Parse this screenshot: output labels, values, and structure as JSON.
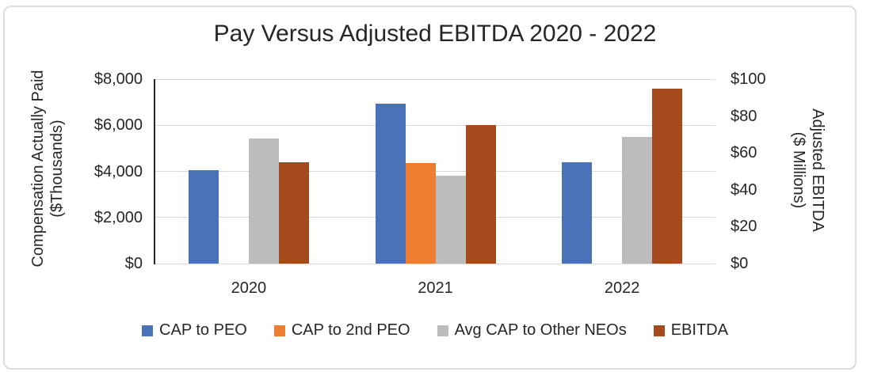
{
  "title": "Pay Versus Adjusted EBITDA 2020 - 2022",
  "colors": {
    "cap_to_peo": "#4A72B8",
    "cap_to_2nd_peo": "#ED7D31",
    "avg_cap_other_neos": "#BCBCBC",
    "ebitda": "#A54A1C",
    "gridline": "#D9D9D9",
    "axis_line": "#262626",
    "text": "#262626",
    "border": "#DCDCDC"
  },
  "chart_data": {
    "type": "bar",
    "title": "Pay Versus Adjusted EBITDA 2020 - 2022",
    "categories": [
      "2020",
      "2021",
      "2022"
    ],
    "series": [
      {
        "name": "CAP to PEO",
        "axis": "left",
        "color": "#4A72B8",
        "values": [
          4050,
          6950,
          4400
        ]
      },
      {
        "name": "CAP to 2nd PEO",
        "axis": "left",
        "color": "#ED7D31",
        "values": [
          null,
          4350,
          null
        ]
      },
      {
        "name": "Avg CAP to Other NEOs",
        "axis": "left",
        "color": "#BCBCBC",
        "values": [
          5430,
          3800,
          5500
        ]
      },
      {
        "name": "EBITDA",
        "axis": "right",
        "color": "#A54A1C",
        "values": [
          55,
          75,
          95
        ]
      }
    ],
    "left_axis": {
      "label_lines": [
        "Compensation Actually Paid",
        "($Thousands)"
      ],
      "ticks": [
        {
          "label": "$8,000",
          "value": 8000
        },
        {
          "label": "$6,000",
          "value": 6000
        },
        {
          "label": "$4,000",
          "value": 4000
        },
        {
          "label": "$2,000",
          "value": 2000
        },
        {
          "label": "$0",
          "value": 0
        }
      ],
      "lim": [
        0,
        8000
      ]
    },
    "right_axis": {
      "label_lines": [
        "Adjusted EBITDA",
        "($ Millions)"
      ],
      "ticks": [
        {
          "label": "$100",
          "value": 100
        },
        {
          "label": "$80",
          "value": 80
        },
        {
          "label": "$60",
          "value": 60
        },
        {
          "label": "$40",
          "value": 40
        },
        {
          "label": "$20",
          "value": 20
        },
        {
          "label": "$0",
          "value": 0
        }
      ],
      "lim": [
        0,
        100
      ]
    },
    "grid": true,
    "legend_position": "bottom"
  }
}
